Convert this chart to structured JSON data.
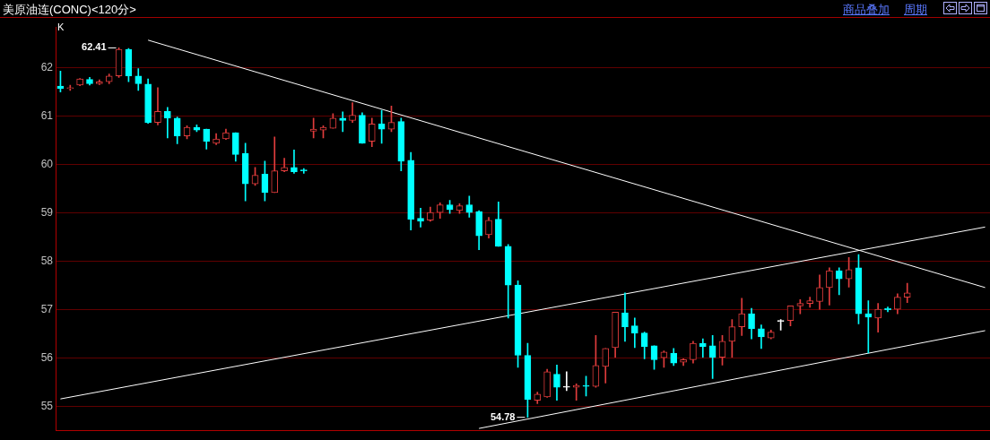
{
  "chart_data": {
    "type": "candlestick",
    "title": "美原油连(CONC)<120分>",
    "categories": [
      null,
      null,
      null,
      null,
      null,
      null,
      null,
      null,
      null,
      null,
      null,
      null,
      null,
      null,
      null,
      null,
      null,
      null,
      null,
      null,
      null,
      null,
      null,
      null,
      null,
      null,
      null,
      null,
      null,
      null,
      null,
      null,
      null,
      null,
      null,
      null,
      null,
      null,
      null,
      null,
      null,
      null,
      null,
      null,
      null,
      null,
      null,
      null,
      null,
      null,
      null,
      null,
      null,
      null,
      null,
      null,
      null,
      null,
      null,
      null,
      null,
      null,
      null,
      null,
      null,
      null,
      null,
      null,
      null,
      null,
      null,
      null,
      null,
      null,
      null,
      null,
      null,
      null,
      null,
      null,
      null,
      null,
      null,
      null,
      null,
      null,
      null,
      null,
      null,
      null,
      null,
      null,
      null,
      null,
      null,
      null
    ],
    "series": [
      {
        "ohlc": [
          [
            61.62,
            61.93,
            61.5,
            61.57
          ],
          [
            61.57,
            61.64,
            61.53,
            61.59
          ],
          [
            61.64,
            61.78,
            61.63,
            61.77
          ],
          [
            61.76,
            61.8,
            61.64,
            61.67
          ],
          [
            61.67,
            61.75,
            61.65,
            61.71
          ],
          [
            61.71,
            61.87,
            61.67,
            61.83
          ],
          [
            61.83,
            62.41,
            61.8,
            62.38
          ],
          [
            62.38,
            62.4,
            61.71,
            61.83
          ],
          [
            61.83,
            61.98,
            61.53,
            61.67
          ],
          [
            61.66,
            61.77,
            60.85,
            60.87
          ],
          [
            60.87,
            61.59,
            60.82,
            61.1
          ],
          [
            61.1,
            61.18,
            60.55,
            60.96
          ],
          [
            60.96,
            60.98,
            60.43,
            60.59
          ],
          [
            60.59,
            60.8,
            60.53,
            60.77
          ],
          [
            60.77,
            60.82,
            60.68,
            60.71
          ],
          [
            60.73,
            60.73,
            60.32,
            60.48
          ],
          [
            60.44,
            60.64,
            60.41,
            60.53
          ],
          [
            60.53,
            60.73,
            60.52,
            60.66
          ],
          [
            60.66,
            60.66,
            60.07,
            60.21
          ],
          [
            60.23,
            60.44,
            59.25,
            59.6
          ],
          [
            59.6,
            59.94,
            59.57,
            59.78
          ],
          [
            59.8,
            60.07,
            59.25,
            59.42
          ],
          [
            59.42,
            60.57,
            59.42,
            59.87
          ],
          [
            59.87,
            60.13,
            59.85,
            59.94
          ],
          [
            59.94,
            60.3,
            59.82,
            59.85
          ],
          [
            59.89,
            59.92,
            59.82,
            59.87
          ],
          [
            60.69,
            60.96,
            60.55,
            60.73
          ],
          [
            60.71,
            60.8,
            60.55,
            60.77
          ],
          [
            60.75,
            61.05,
            60.75,
            60.96
          ],
          [
            60.96,
            61.09,
            60.68,
            60.91
          ],
          [
            60.91,
            61.28,
            60.87,
            61.02
          ],
          [
            61.02,
            61.07,
            60.44,
            60.44
          ],
          [
            60.48,
            60.96,
            60.37,
            60.84
          ],
          [
            60.84,
            61.12,
            60.44,
            60.73
          ],
          [
            60.73,
            61.21,
            60.68,
            60.87
          ],
          [
            60.89,
            60.96,
            59.87,
            60.07
          ],
          [
            60.09,
            60.25,
            58.65,
            58.87
          ],
          [
            58.89,
            59.1,
            58.71,
            58.83
          ],
          [
            58.85,
            59.12,
            58.83,
            59.01
          ],
          [
            59.01,
            59.21,
            58.89,
            59.17
          ],
          [
            59.17,
            59.26,
            58.99,
            59.07
          ],
          [
            59.05,
            59.19,
            58.99,
            59.15
          ],
          [
            59.17,
            59.35,
            58.91,
            59.01
          ],
          [
            59.03,
            59.05,
            58.24,
            58.53
          ],
          [
            58.55,
            58.91,
            58.48,
            58.85
          ],
          [
            58.87,
            59.23,
            58.31,
            58.31
          ],
          [
            58.31,
            58.35,
            56.83,
            57.51
          ],
          [
            57.51,
            57.6,
            55.81,
            56.06
          ],
          [
            56.06,
            56.31,
            54.78,
            55.15
          ],
          [
            55.13,
            55.3,
            55.06,
            55.26
          ],
          [
            55.2,
            55.77,
            55.19,
            55.72
          ],
          [
            55.67,
            55.86,
            55.13,
            55.4
          ],
          [
            55.4,
            55.72,
            55.33,
            55.4
          ],
          [
            55.4,
            55.47,
            55.13,
            55.44
          ],
          [
            55.44,
            55.63,
            55.22,
            55.42
          ],
          [
            55.42,
            56.47,
            55.4,
            55.85
          ],
          [
            55.83,
            56.2,
            55.49,
            56.2
          ],
          [
            56.22,
            56.95,
            56.02,
            56.95
          ],
          [
            56.94,
            57.35,
            56.35,
            56.65
          ],
          [
            56.67,
            56.83,
            56.22,
            56.52
          ],
          [
            56.52,
            56.54,
            55.99,
            56.24
          ],
          [
            56.26,
            56.26,
            55.77,
            55.97
          ],
          [
            56.01,
            56.15,
            55.81,
            56.13
          ],
          [
            56.1,
            56.2,
            55.85,
            55.9
          ],
          [
            55.92,
            55.99,
            55.85,
            55.97
          ],
          [
            55.97,
            56.35,
            55.9,
            56.31
          ],
          [
            56.31,
            56.4,
            56.02,
            56.24
          ],
          [
            56.26,
            56.47,
            55.58,
            56.02
          ],
          [
            56.02,
            56.47,
            55.86,
            56.35
          ],
          [
            56.35,
            56.8,
            56.02,
            56.65
          ],
          [
            56.65,
            57.24,
            56.47,
            56.92
          ],
          [
            56.92,
            57.03,
            56.4,
            56.61
          ],
          [
            56.61,
            56.69,
            56.2,
            56.44
          ],
          [
            56.42,
            56.58,
            56.4,
            56.54
          ],
          [
            56.76,
            56.8,
            56.58,
            56.76
          ],
          [
            56.78,
            57.08,
            56.67,
            57.08
          ],
          [
            57.08,
            57.21,
            56.92,
            57.13
          ],
          [
            57.13,
            57.26,
            57.05,
            57.19
          ],
          [
            57.17,
            57.72,
            57.01,
            57.46
          ],
          [
            57.46,
            57.87,
            57.1,
            57.81
          ],
          [
            57.81,
            57.87,
            57.31,
            57.64
          ],
          [
            57.64,
            58.08,
            57.47,
            57.83
          ],
          [
            57.87,
            58.14,
            56.71,
            56.92
          ],
          [
            56.92,
            57.19,
            56.11,
            56.85
          ],
          [
            56.83,
            57.13,
            56.54,
            57.01
          ],
          [
            57.03,
            57.06,
            56.96,
            57.0
          ],
          [
            57.01,
            57.33,
            56.92,
            57.26
          ],
          [
            57.26,
            57.55,
            57.15,
            57.35
          ],
          null,
          null,
          null,
          null,
          null,
          null,
          null,
          null
        ],
        "colors": [
          "#00ffff",
          "#e03c3c",
          "#e03c3c",
          "#00ffff",
          "#e03c3c",
          "#e03c3c",
          "#e03c3c",
          "#00ffff",
          "#00ffff",
          "#00ffff",
          "#e03c3c",
          "#00ffff",
          "#00ffff",
          "#e03c3c",
          "#00ffff",
          "#00ffff",
          "#e03c3c",
          "#e03c3c",
          "#00ffff",
          "#00ffff",
          "#e03c3c",
          "#00ffff",
          "#e03c3c",
          "#e03c3c",
          "#00ffff",
          "#00ffff",
          "#e03c3c",
          "#e03c3c",
          "#e03c3c",
          "#00ffff",
          "#e03c3c",
          "#00ffff",
          "#e03c3c",
          "#00ffff",
          "#e03c3c",
          "#00ffff",
          "#00ffff",
          "#00ffff",
          "#e03c3c",
          "#e03c3c",
          "#00ffff",
          "#e03c3c",
          "#00ffff",
          "#00ffff",
          "#e03c3c",
          "#00ffff",
          "#00ffff",
          "#00ffff",
          "#00ffff",
          "#e03c3c",
          "#e03c3c",
          "#00ffff",
          "#ffffff",
          "#e03c3c",
          "#00ffff",
          "#e03c3c",
          "#e03c3c",
          "#e03c3c",
          "#00ffff",
          "#00ffff",
          "#00ffff",
          "#00ffff",
          "#e03c3c",
          "#00ffff",
          "#e03c3c",
          "#e03c3c",
          "#00ffff",
          "#00ffff",
          "#e03c3c",
          "#e03c3c",
          "#e03c3c",
          "#00ffff",
          "#00ffff",
          "#e03c3c",
          "#ffffff",
          "#e03c3c",
          "#e03c3c",
          "#e03c3c",
          "#e03c3c",
          "#e03c3c",
          "#00ffff",
          "#e03c3c",
          "#00ffff",
          "#00ffff",
          "#e03c3c",
          "#00ffff",
          "#e03c3c",
          "#e03c3c",
          null,
          null,
          null,
          null,
          null,
          null,
          null,
          null
        ]
      },
      {
        "type": "line",
        "color": "#ffffff",
        "values": [
          null,
          null,
          null,
          null,
          null,
          null,
          null,
          null,
          null,
          62.57,
          null,
          null,
          null,
          null,
          null,
          null,
          null,
          null,
          null,
          null,
          null,
          null,
          null,
          null,
          null,
          null,
          null,
          null,
          null,
          null,
          null,
          null,
          null,
          null,
          null,
          null,
          null,
          null,
          null,
          null,
          null,
          null,
          null,
          null,
          null,
          null,
          null,
          null,
          null,
          null,
          null,
          null,
          null,
          null,
          null,
          null,
          null,
          null,
          null,
          null,
          null,
          null,
          null,
          null,
          null,
          null,
          null,
          null,
          null,
          null,
          null,
          null,
          null,
          null,
          null,
          null,
          null,
          null,
          null,
          null,
          null,
          null,
          null,
          null,
          null,
          null,
          null,
          null,
          null,
          null,
          null,
          null,
          null,
          null,
          null,
          57.46
        ]
      },
      {
        "type": "line",
        "color": "#ffffff",
        "values": [
          55.16,
          null,
          null,
          null,
          null,
          null,
          null,
          null,
          null,
          null,
          null,
          null,
          null,
          null,
          null,
          null,
          null,
          null,
          null,
          null,
          null,
          null,
          null,
          null,
          null,
          null,
          null,
          null,
          null,
          null,
          null,
          null,
          null,
          null,
          null,
          null,
          null,
          null,
          null,
          null,
          null,
          null,
          null,
          null,
          null,
          null,
          null,
          null,
          null,
          null,
          null,
          null,
          null,
          null,
          null,
          null,
          null,
          null,
          null,
          null,
          null,
          null,
          null,
          null,
          null,
          null,
          null,
          null,
          null,
          null,
          null,
          null,
          null,
          null,
          null,
          null,
          null,
          null,
          null,
          null,
          null,
          null,
          null,
          null,
          null,
          null,
          null,
          null,
          null,
          null,
          null,
          null,
          null,
          null,
          null,
          58.71
        ]
      },
      {
        "type": "line",
        "color": "#ffffff",
        "values": [
          null,
          null,
          null,
          null,
          null,
          null,
          null,
          null,
          null,
          null,
          null,
          null,
          null,
          null,
          null,
          null,
          null,
          null,
          null,
          null,
          null,
          null,
          null,
          null,
          null,
          null,
          null,
          null,
          null,
          null,
          null,
          null,
          null,
          null,
          null,
          null,
          null,
          null,
          null,
          null,
          null,
          null,
          null,
          54.55,
          null,
          null,
          null,
          null,
          null,
          null,
          null,
          null,
          null,
          null,
          null,
          null,
          null,
          null,
          null,
          null,
          null,
          null,
          null,
          null,
          null,
          null,
          null,
          null,
          null,
          null,
          null,
          null,
          null,
          null,
          null,
          null,
          null,
          null,
          null,
          null,
          null,
          null,
          null,
          null,
          null,
          null,
          null,
          null,
          null,
          null,
          null,
          null,
          null,
          null,
          null,
          56.57
        ]
      }
    ],
    "ylim": [
      54.5,
      62.84
    ],
    "yticks": [
      55,
      56,
      57,
      58,
      59,
      60,
      61,
      62
    ],
    "grid": "y",
    "tick_labels": "y",
    "legend": false,
    "annotations": [
      "K",
      "商品叠加",
      "周期",
      "62.41",
      "54.78"
    ]
  }
}
